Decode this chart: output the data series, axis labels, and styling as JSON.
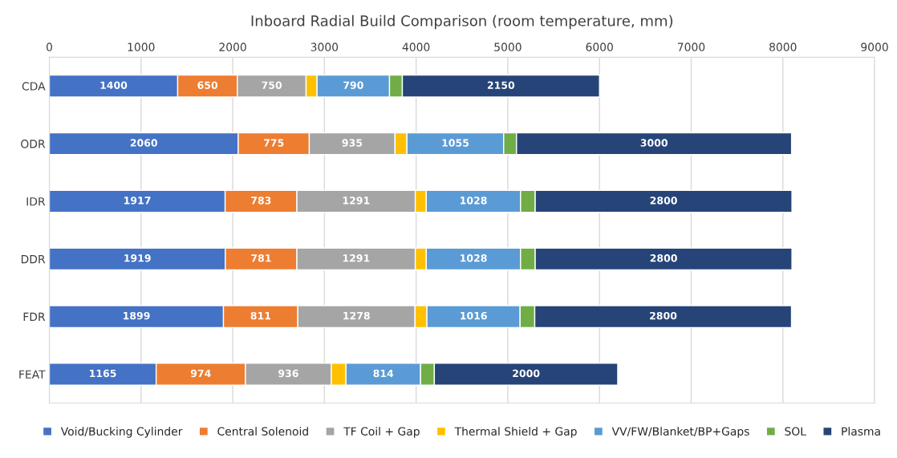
{
  "chart_data": {
    "type": "bar",
    "orientation": "horizontal",
    "stacked": true,
    "title": "Inboard Radial Build Comparison (room temperature, mm)",
    "categories": [
      "CDA",
      "ODR",
      "IDR",
      "DDR",
      "FDR",
      "FEAT"
    ],
    "series": [
      {
        "name": "Void/Bucking Cylinder",
        "color": "#4472c4",
        "values": [
          1400,
          2060,
          1917,
          1919,
          1899,
          1165
        ],
        "value_labels": [
          "1400",
          "2060",
          "1917",
          "1919",
          "1899",
          "1165"
        ]
      },
      {
        "name": "Central Solenoid",
        "color": "#ed7d31",
        "values": [
          650,
          775,
          783,
          781,
          811,
          974
        ],
        "value_labels": [
          "650",
          "775",
          "783",
          "781",
          "811",
          "974"
        ]
      },
      {
        "name": "TF Coil + Gap",
        "color": "#a5a5a5",
        "values": [
          750,
          935,
          1291,
          1291,
          1278,
          936
        ],
        "value_labels": [
          "750",
          "935",
          "1291",
          "1291",
          "1278",
          "936"
        ]
      },
      {
        "name": "Thermal Shield + Gap",
        "color": "#ffc000",
        "values": [
          120,
          130,
          120,
          120,
          130,
          160
        ]
      },
      {
        "name": "VV/FW/Blanket/BP+Gaps",
        "color": "#5b9bd5",
        "values": [
          790,
          1055,
          1028,
          1028,
          1016,
          814
        ],
        "value_labels": [
          "790",
          "1055",
          "1028",
          "1028",
          "1016",
          "814"
        ]
      },
      {
        "name": "SOL",
        "color": "#70ad47",
        "values": [
          140,
          140,
          160,
          160,
          160,
          150
        ]
      },
      {
        "name": "Plasma",
        "color": "#264478",
        "values": [
          2150,
          3000,
          2800,
          2800,
          2800,
          2000
        ],
        "value_labels": [
          "2150",
          "3000",
          "2800",
          "2800",
          "2800",
          "2000"
        ]
      }
    ],
    "xlim": [
      0,
      9000
    ],
    "xticks": [
      0,
      1000,
      2000,
      3000,
      4000,
      5000,
      6000,
      7000,
      8000,
      9000
    ],
    "grid": "x",
    "legend": "bottom"
  }
}
